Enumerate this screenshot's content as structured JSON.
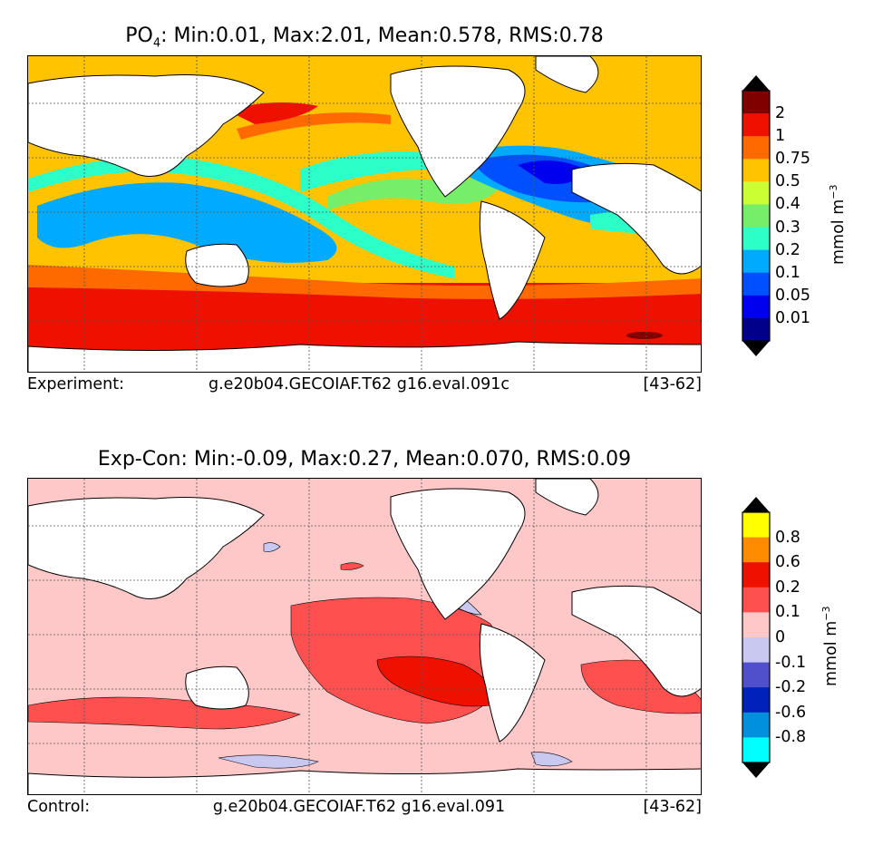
{
  "panels": [
    {
      "title_prefix": "PO",
      "title_subscript": "4",
      "title_stats": ": Min:0.01, Max:2.01, Mean:0.578, RMS:0.78",
      "caption_label": "Experiment:",
      "caption_run": "g.e20b04.GECOIAF.T62 g16.eval.091c",
      "caption_years": "[43-62]",
      "colorbar": {
        "unit_base": "mmol m",
        "unit_exp": "−3",
        "ticks": [
          "2",
          "1",
          "0.75",
          "0.5",
          "0.4",
          "0.3",
          "0.2",
          "0.1",
          "0.05",
          "0.01"
        ],
        "colors": [
          "#800000",
          "#ee1100",
          "#ff6a00",
          "#ffc300",
          "#ccff33",
          "#76ee6a",
          "#2cffc8",
          "#00aaff",
          "#0050ff",
          "#0000ee",
          "#00008a"
        ],
        "over_color": "#000000",
        "under_color": "#000000"
      }
    },
    {
      "title_prefix": "Exp-Con",
      "title_subscript": "",
      "title_stats": ": Min:-0.09, Max:0.27, Mean:0.070, RMS:0.09",
      "caption_label": "Control:",
      "caption_run": "g.e20b04.GECOIAF.T62 g16.eval.091",
      "caption_years": "[43-62]",
      "colorbar": {
        "unit_base": "mmol m",
        "unit_exp": "−3",
        "ticks": [
          "0.8",
          "0.6",
          "0.2",
          "0.1",
          "0",
          "-0.1",
          "-0.2",
          "-0.6",
          "-0.8"
        ],
        "colors": [
          "#ffff00",
          "#ff8c00",
          "#ee1100",
          "#ff5050",
          "#ffc8c8",
          "#c8c8f0",
          "#5050cc",
          "#0022bb",
          "#0090dd",
          "#00ffff"
        ],
        "over_color": "#000000",
        "under_color": "#000000"
      }
    }
  ]
}
